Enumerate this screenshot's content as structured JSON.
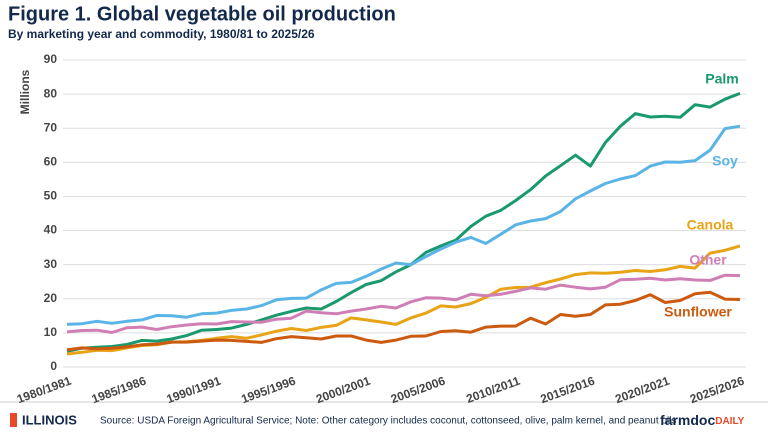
{
  "chart_data": {
    "type": "line",
    "title": "Figure 1. Global vegetable oil production",
    "subtitle": "By marketing year and commodity, 1980/81 to 2025/26",
    "y_label": "Millions",
    "source": "Source: USDA Foreign Agricultural Service; Note: Other category includes coconut, cottonseed, olive, palm kernel, and peanut oils",
    "categories": [
      "1980/1981",
      null,
      null,
      null,
      null,
      "1985/1986",
      null,
      null,
      null,
      null,
      "1990/1991",
      null,
      null,
      null,
      null,
      "1995/1996",
      null,
      null,
      null,
      null,
      "2000/2001",
      null,
      null,
      null,
      null,
      "2005/2006",
      null,
      null,
      null,
      null,
      "2010/2011",
      null,
      null,
      null,
      null,
      "2015/2016",
      null,
      null,
      null,
      null,
      "2020/2021",
      null,
      null,
      null,
      null,
      "2025/2026"
    ],
    "series": [
      {
        "name": "Palm",
        "color": "#1a9a6c",
        "values": [
          4.6,
          5.5,
          5.8,
          6.0,
          6.6,
          7.8,
          7.6,
          8.2,
          9.2,
          10.8,
          11.0,
          11.4,
          12.5,
          13.8,
          15.2,
          16.3,
          17.3,
          17.0,
          19.2,
          21.8,
          24.2,
          25.3,
          27.9,
          30.0,
          33.6,
          35.5,
          37.2,
          41.2,
          44.2,
          45.9,
          48.8,
          52.0,
          56.0,
          59.0,
          62.1,
          58.9,
          65.8,
          70.6,
          74.3,
          73.3,
          73.5,
          73.2,
          76.9,
          76.2,
          78.5,
          80.2
        ]
      },
      {
        "name": "Soy",
        "color": "#5ab4e5",
        "values": [
          12.5,
          12.7,
          13.4,
          12.8,
          13.4,
          13.8,
          15.1,
          15.0,
          14.6,
          15.6,
          15.8,
          16.6,
          17.0,
          18.0,
          19.7,
          20.1,
          20.2,
          22.6,
          24.5,
          24.8,
          26.6,
          28.7,
          30.5,
          30.0,
          32.4,
          34.6,
          36.6,
          38.0,
          36.2,
          38.9,
          41.7,
          42.8,
          43.5,
          45.6,
          49.3,
          51.6,
          53.8,
          55.1,
          56.1,
          58.9,
          60.1,
          60.0,
          60.5,
          63.6,
          69.9,
          70.6
        ]
      },
      {
        "name": "Canola",
        "color": "#e8a317",
        "values": [
          3.8,
          4.3,
          4.9,
          4.8,
          5.6,
          6.3,
          6.5,
          7.3,
          7.4,
          7.8,
          8.4,
          8.9,
          8.4,
          9.4,
          10.5,
          11.3,
          10.7,
          11.6,
          12.2,
          14.4,
          13.8,
          13.2,
          12.5,
          14.4,
          15.8,
          17.9,
          17.6,
          18.6,
          20.4,
          22.8,
          23.3,
          23.4,
          24.7,
          25.8,
          27.1,
          27.6,
          27.5,
          27.8,
          28.3,
          28.0,
          28.5,
          29.5,
          29.0,
          33.4,
          34.2,
          35.5
        ]
      },
      {
        "name": "Other",
        "color": "#d07fb5",
        "values": [
          10.3,
          10.7,
          10.8,
          10.1,
          11.5,
          11.7,
          11.0,
          11.8,
          12.3,
          12.7,
          12.6,
          13.3,
          13.2,
          13.1,
          14.0,
          14.3,
          16.4,
          15.9,
          15.6,
          16.4,
          17.0,
          17.8,
          17.3,
          19.1,
          20.3,
          20.2,
          19.7,
          21.3,
          20.9,
          21.3,
          22.2,
          23.2,
          22.8,
          24.0,
          23.4,
          22.9,
          23.4,
          25.6,
          25.7,
          26.0,
          25.5,
          25.9,
          25.5,
          25.4,
          26.9,
          26.8
        ]
      },
      {
        "name": "Sunflower",
        "color": "#cc5a0f",
        "values": [
          5.0,
          5.6,
          5.3,
          5.5,
          5.9,
          6.5,
          6.7,
          7.3,
          7.3,
          7.6,
          7.9,
          7.8,
          7.5,
          7.2,
          8.3,
          8.9,
          8.6,
          8.2,
          9.1,
          9.1,
          7.9,
          7.2,
          7.9,
          9.0,
          9.1,
          10.4,
          10.6,
          10.2,
          11.7,
          12.0,
          12.0,
          14.3,
          12.6,
          15.4,
          14.9,
          15.4,
          18.2,
          18.4,
          19.5,
          21.2,
          18.9,
          19.5,
          21.5,
          21.9,
          19.9,
          19.8
        ]
      }
    ],
    "ylim": [
      0,
      90
    ],
    "yticks": [
      0,
      10,
      20,
      30,
      40,
      50,
      60,
      70,
      80,
      90
    ],
    "grid": true
  },
  "footer": {
    "logo_left": "ILLINOIS",
    "logo_right_main": "farmdoc",
    "logo_right_accent": "DAILY"
  }
}
